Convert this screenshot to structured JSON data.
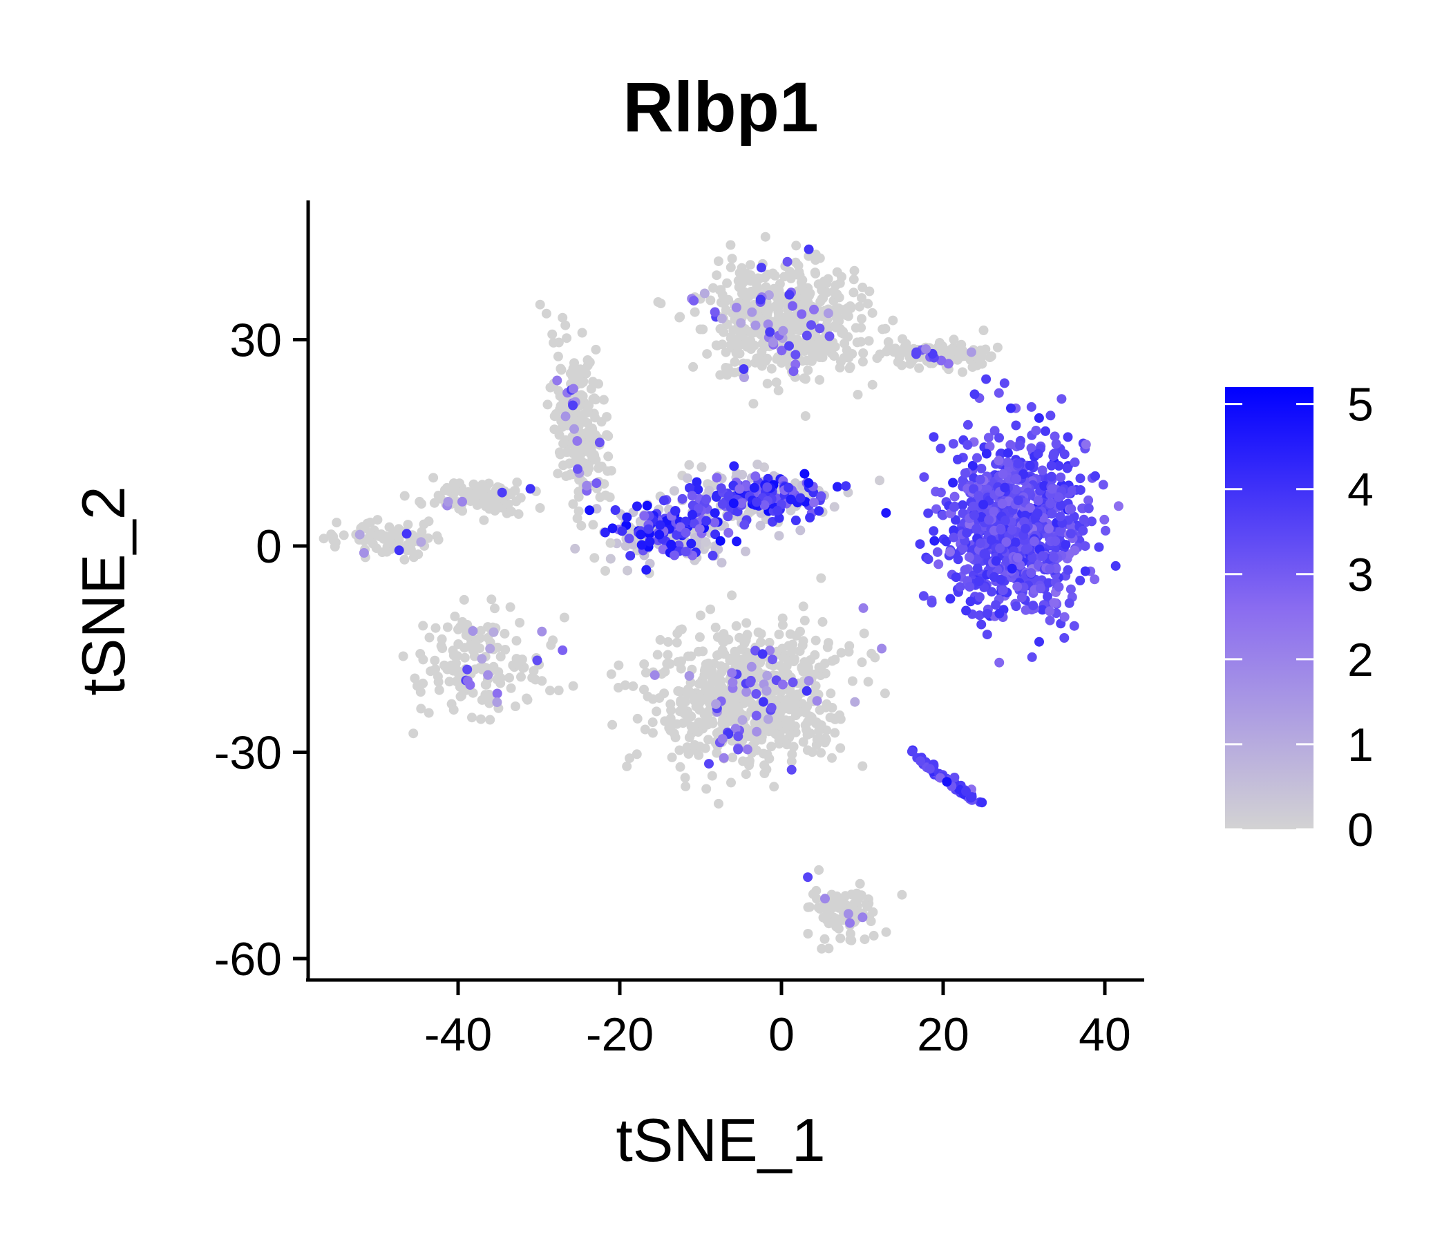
{
  "chart_data": {
    "type": "scatter",
    "title": "Rlbp1",
    "xlabel": "tSNE_1",
    "ylabel": "tSNE_2",
    "xlim": [
      -59,
      45
    ],
    "ylim": [
      -63,
      50
    ],
    "xticks": [
      {
        "value": -40,
        "label": "-40"
      },
      {
        "value": -20,
        "label": "-20"
      },
      {
        "value": 0,
        "label": "0"
      },
      {
        "value": 20,
        "label": "20"
      },
      {
        "value": 40,
        "label": "40"
      }
    ],
    "yticks": [
      {
        "value": -60,
        "label": "-60"
      },
      {
        "value": -30,
        "label": "-30"
      },
      {
        "value": 0,
        "label": "0"
      },
      {
        "value": 30,
        "label": "30"
      }
    ],
    "grid": false,
    "legend": {
      "placement": "right",
      "min": 0,
      "max": 5.2,
      "ticks": [
        {
          "value": 0,
          "label": "0"
        },
        {
          "value": 1,
          "label": "1"
        },
        {
          "value": 2,
          "label": "2"
        },
        {
          "value": 3,
          "label": "3"
        },
        {
          "value": 4,
          "label": "4"
        },
        {
          "value": 5,
          "label": "5"
        }
      ],
      "low_color": "#d3d3d3",
      "high_color": "#0000ff"
    },
    "clusters": [
      {
        "region": "muller-glia-fan",
        "center": [
          29,
          3
        ],
        "spread": [
          7,
          11
        ],
        "expression": "high",
        "mean_expression": 3.4
      },
      {
        "region": "bridge-arm",
        "center": [
          -3,
          7
        ],
        "spread": [
          8,
          3
        ],
        "expression": "mixed",
        "mean_expression": 1.6
      },
      {
        "region": "bridge-stem",
        "center": [
          -14,
          2
        ],
        "spread": [
          6,
          4
        ],
        "expression": "mixed",
        "mean_expression": 1.0
      },
      {
        "region": "top-cloud",
        "center": [
          0,
          33
        ],
        "spread": [
          8,
          7
        ],
        "expression": "low",
        "mean_expression": 0.2
      },
      {
        "region": "top-right-strip",
        "center": [
          20,
          28
        ],
        "spread": [
          6,
          1.5
        ],
        "expression": "low",
        "mean_expression": 0.1
      },
      {
        "region": "left-vertical-streak",
        "center": [
          -25,
          17
        ],
        "spread": [
          2.5,
          10
        ],
        "expression": "low",
        "mean_expression": 0.2
      },
      {
        "region": "left-diagonal-strip",
        "center": [
          -38,
          7
        ],
        "spread": [
          6,
          2
        ],
        "expression": "low",
        "mean_expression": 0.3
      },
      {
        "region": "far-left-strip",
        "center": [
          -48,
          1
        ],
        "spread": [
          6,
          2
        ],
        "expression": "low",
        "mean_expression": 0.1
      },
      {
        "region": "left-lower-arc",
        "center": [
          -37,
          -17
        ],
        "spread": [
          7,
          6
        ],
        "expression": "low",
        "mean_expression": 0.3
      },
      {
        "region": "bottom-cloud",
        "center": [
          -4,
          -22
        ],
        "spread": [
          10,
          8
        ],
        "expression": "low",
        "mean_expression": 0.15
      },
      {
        "region": "bottom-right-line",
        "center": [
          21,
          -34
        ],
        "spread": [
          4,
          3
        ],
        "expression": "high",
        "mean_expression": 3.6
      },
      {
        "region": "bottom-tail",
        "center": [
          8,
          -53
        ],
        "spread": [
          4,
          4
        ],
        "expression": "low",
        "mean_expression": 0.1
      }
    ]
  }
}
